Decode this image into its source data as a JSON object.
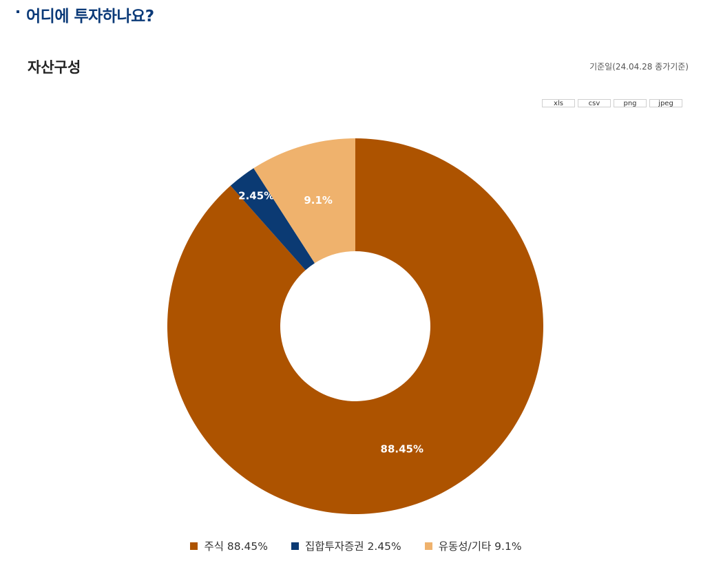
{
  "page": {
    "section_title": "어디에 투자하나요?",
    "chart_heading": "자산구성",
    "base_date": "기준일(24.04.28 종가기준)",
    "export_buttons": [
      "xls",
      "csv",
      "png",
      "jpeg"
    ]
  },
  "chart_data": {
    "type": "pie",
    "donut": true,
    "title": "자산구성",
    "slices": [
      {
        "label": "주식",
        "value": 88.45,
        "display": "88.45%",
        "legend": "주식 88.45%",
        "color": "#ad5300"
      },
      {
        "label": "집합투자증권",
        "value": 2.45,
        "display": "2.45%",
        "legend": "집합투자증권 2.45%",
        "color": "#0b3a73"
      },
      {
        "label": "유동성/기타",
        "value": 9.1,
        "display": "9.1%",
        "legend": "유동성/기타 9.1%",
        "color": "#efb26d"
      }
    ],
    "legend_position": "bottom"
  }
}
